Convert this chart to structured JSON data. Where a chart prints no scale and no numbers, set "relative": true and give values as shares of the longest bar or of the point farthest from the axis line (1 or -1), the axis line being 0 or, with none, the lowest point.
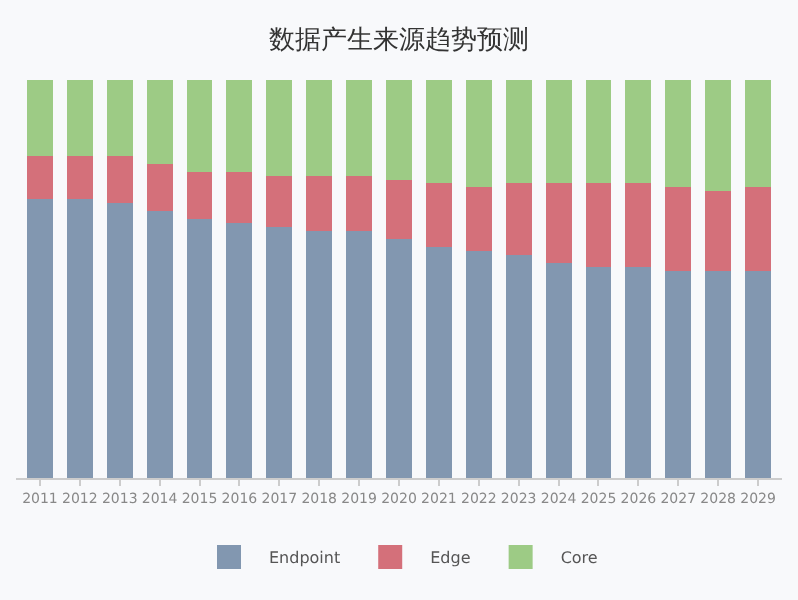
{
  "chart_data": {
    "type": "bar",
    "title": "数据产生来源趋势预测",
    "stacked": true,
    "relative": true,
    "legend": "bottom",
    "categories": [
      "2011",
      "2012",
      "2013",
      "2014",
      "2015",
      "2016",
      "2017",
      "2018",
      "2019",
      "2020",
      "2021",
      "2022",
      "2023",
      "2024",
      "2025",
      "2026",
      "2027",
      "2028",
      "2029"
    ],
    "series": [
      {
        "name": "Endpoint",
        "color": "#8297b0",
        "values": [
          0.7,
          0.7,
          0.69,
          0.67,
          0.65,
          0.64,
          0.63,
          0.62,
          0.62,
          0.6,
          0.58,
          0.57,
          0.56,
          0.54,
          0.53,
          0.53,
          0.52,
          0.52,
          0.52
        ]
      },
      {
        "name": "Edge",
        "color": "#d4707a",
        "values": [
          0.11,
          0.11,
          0.12,
          0.12,
          0.12,
          0.13,
          0.13,
          0.14,
          0.14,
          0.15,
          0.16,
          0.16,
          0.18,
          0.2,
          0.21,
          0.21,
          0.21,
          0.2,
          0.21
        ]
      },
      {
        "name": "Core",
        "color": "#9dcb85",
        "values": [
          0.19,
          0.19,
          0.19,
          0.21,
          0.23,
          0.23,
          0.24,
          0.24,
          0.24,
          0.25,
          0.26,
          0.27,
          0.26,
          0.26,
          0.26,
          0.26,
          0.27,
          0.28,
          0.27
        ]
      }
    ]
  }
}
